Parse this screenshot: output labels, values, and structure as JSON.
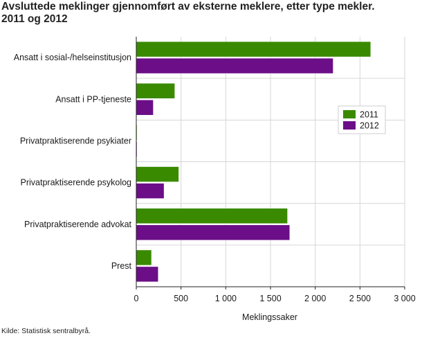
{
  "title_line1": "Avsluttede meklinger gjennomført av eksterne meklere, etter type mekler.",
  "title_line2": "2011 og 2012",
  "source": "Kilde: Statistisk sentralbyrå.",
  "chart_data": {
    "type": "bar",
    "orientation": "horizontal",
    "title": "Avsluttede meklinger gjennomført av eksterne meklere, etter type mekler. 2011 og 2012",
    "xlabel": "Meklingssaker",
    "ylabel": "",
    "xlim": [
      0,
      3000
    ],
    "xticks": [
      0,
      500,
      1000,
      1500,
      2000,
      2500,
      3000
    ],
    "xtick_labels": [
      "0",
      "500",
      "1 000",
      "1 500",
      "2 000",
      "2 500",
      "3 000"
    ],
    "grid": "vertical",
    "legend_position": "right",
    "categories": [
      "Ansatt i sosial-/helseinstitusjon",
      "Ansatt i PP-tjeneste",
      "Privatpraktiserende psykiater",
      "Privatpraktiserende psykolog",
      "Privatpraktiserende advokat",
      "Prest"
    ],
    "series": [
      {
        "name": "2011",
        "color": "#3a8a00",
        "values": [
          2620,
          430,
          5,
          475,
          1690,
          170
        ]
      },
      {
        "name": "2012",
        "color": "#6b0e87",
        "values": [
          2200,
          190,
          5,
          310,
          1715,
          245
        ]
      }
    ]
  }
}
